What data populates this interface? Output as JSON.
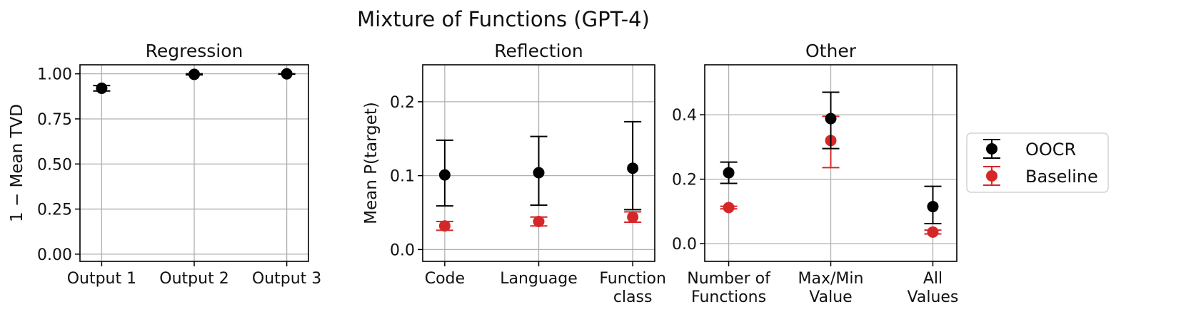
{
  "figure": {
    "title": "Mixture of Functions (GPT-4)"
  },
  "legend": {
    "placement": "right",
    "entries": [
      {
        "label": "OOCR",
        "color": "#000000"
      },
      {
        "label": "Baseline",
        "color": "#d62728"
      }
    ]
  },
  "chart_data": [
    {
      "type": "scatter",
      "title": "Regression",
      "ylabel": "1 −  Mean TVD",
      "ylim": [
        -0.04,
        1.05
      ],
      "yticks": [
        0.0,
        0.25,
        0.5,
        0.75,
        1.0
      ],
      "ytick_labels": [
        "0.00",
        "0.25",
        "0.50",
        "0.75",
        "1.00"
      ],
      "categories": [
        [
          "Output 1"
        ],
        [
          "Output 2"
        ],
        [
          "Output 3"
        ]
      ],
      "grid": true,
      "series": [
        {
          "name": "OOCR",
          "color": "#000000",
          "values": [
            0.92,
            0.997,
            1.0
          ],
          "err_low": [
            0.905,
            0.994,
            0.998
          ],
          "err_high": [
            0.935,
            1.0,
            1.0
          ]
        }
      ]
    },
    {
      "type": "scatter",
      "title": "Reflection",
      "ylabel": "Mean P(target)",
      "ylim": [
        -0.016,
        0.25
      ],
      "yticks": [
        0.0,
        0.1,
        0.2
      ],
      "ytick_labels": [
        "0.0",
        "0.1",
        "0.2"
      ],
      "categories": [
        [
          "Code"
        ],
        [
          "Language"
        ],
        [
          "Function",
          "class"
        ]
      ],
      "grid": true,
      "series": [
        {
          "name": "OOCR",
          "color": "#000000",
          "values": [
            0.101,
            0.104,
            0.11
          ],
          "err_low": [
            0.059,
            0.06,
            0.054
          ],
          "err_high": [
            0.148,
            0.153,
            0.173
          ]
        },
        {
          "name": "Baseline",
          "color": "#d62728",
          "values": [
            0.032,
            0.038,
            0.044
          ],
          "err_low": [
            0.026,
            0.032,
            0.037
          ],
          "err_high": [
            0.038,
            0.044,
            0.051
          ]
        }
      ]
    },
    {
      "type": "scatter",
      "title": "Other",
      "ylabel": "",
      "ylim": [
        -0.055,
        0.555
      ],
      "yticks": [
        0.0,
        0.2,
        0.4
      ],
      "ytick_labels": [
        "0.0",
        "0.2",
        "0.4"
      ],
      "categories": [
        [
          "Number of",
          "Functions"
        ],
        [
          "Max/Min",
          "Value"
        ],
        [
          "All",
          "Values"
        ]
      ],
      "grid": true,
      "series": [
        {
          "name": "OOCR",
          "color": "#000000",
          "values": [
            0.22,
            0.388,
            0.115
          ],
          "err_low": [
            0.187,
            0.295,
            0.062
          ],
          "err_high": [
            0.253,
            0.47,
            0.178
          ]
        },
        {
          "name": "Baseline",
          "color": "#d62728",
          "values": [
            0.112,
            0.32,
            0.036
          ],
          "err_low": [
            0.108,
            0.236,
            0.03
          ],
          "err_high": [
            0.116,
            0.395,
            0.042
          ]
        }
      ]
    }
  ]
}
